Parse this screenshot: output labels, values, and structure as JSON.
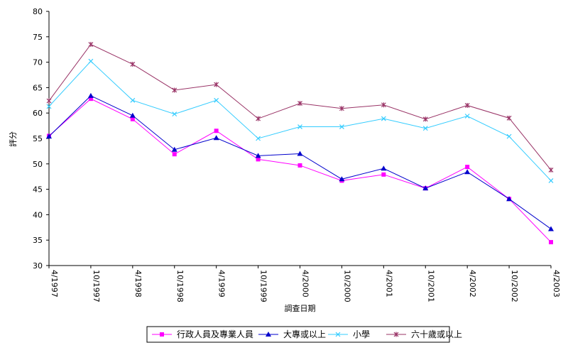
{
  "chart_data": {
    "type": "line",
    "xlabel": "調查日期",
    "ylabel": "評分",
    "ylim": [
      30,
      80
    ],
    "ystep": 5,
    "grid": false,
    "legend_position": "bottom",
    "categories": [
      "4/1997",
      "10/1997",
      "4/1998",
      "10/1998",
      "4/1999",
      "10/1999",
      "4/2000",
      "10/2000",
      "4/2001",
      "10/2001",
      "4/2002",
      "10/2002",
      "4/2003"
    ],
    "series": [
      {
        "name": "行政人員及專業人員",
        "color": "#ff00ff",
        "marker": "square",
        "values": [
          55.5,
          62.8,
          58.8,
          51.9,
          56.5,
          50.9,
          49.7,
          46.7,
          47.9,
          45.2,
          49.4,
          43.1,
          34.6
        ]
      },
      {
        "name": "大專或以上",
        "color": "#0000cc",
        "marker": "triangle",
        "values": [
          55.4,
          63.4,
          59.5,
          52.8,
          55.1,
          51.6,
          52.0,
          47.0,
          49.1,
          45.2,
          48.4,
          43.1,
          37.2
        ]
      },
      {
        "name": "小學",
        "color": "#33ccff",
        "marker": "x",
        "values": [
          61.3,
          70.2,
          62.5,
          59.8,
          62.5,
          55.0,
          57.3,
          57.3,
          58.9,
          57.0,
          59.4,
          55.4,
          46.7
        ]
      },
      {
        "name": "六十歲或以上",
        "color": "#993366",
        "marker": "star",
        "values": [
          62.4,
          73.5,
          69.6,
          64.5,
          65.6,
          58.9,
          61.9,
          60.9,
          61.6,
          58.8,
          61.5,
          59.0,
          48.8
        ]
      }
    ]
  }
}
